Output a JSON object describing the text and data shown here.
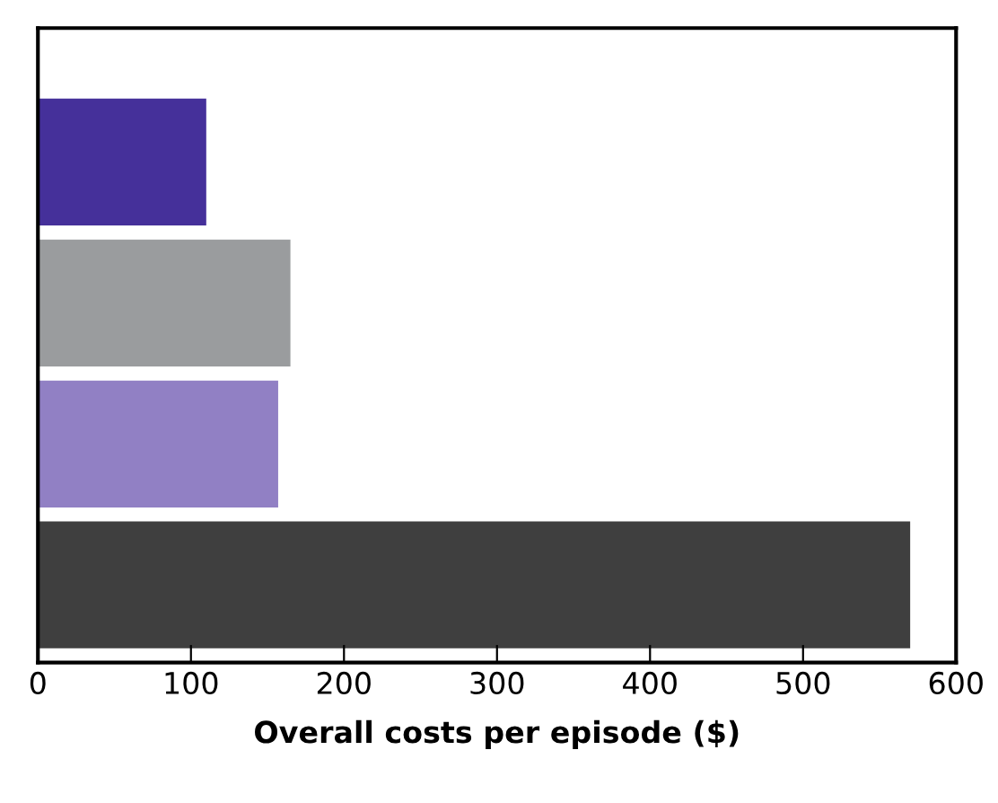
{
  "chart_data": {
    "type": "bar",
    "orientation": "horizontal",
    "xlabel": "Overall costs per episode ($)",
    "categories": [
      null,
      null,
      null,
      null
    ],
    "values": [
      110,
      165,
      157,
      570
    ],
    "colors": [
      "#45309a",
      "#9a9c9e",
      "#9180c4",
      "#3f3f3f"
    ],
    "xlim": [
      0,
      600
    ],
    "xticks": [
      0,
      100,
      200,
      300,
      400,
      500,
      600
    ],
    "grid": false
  }
}
